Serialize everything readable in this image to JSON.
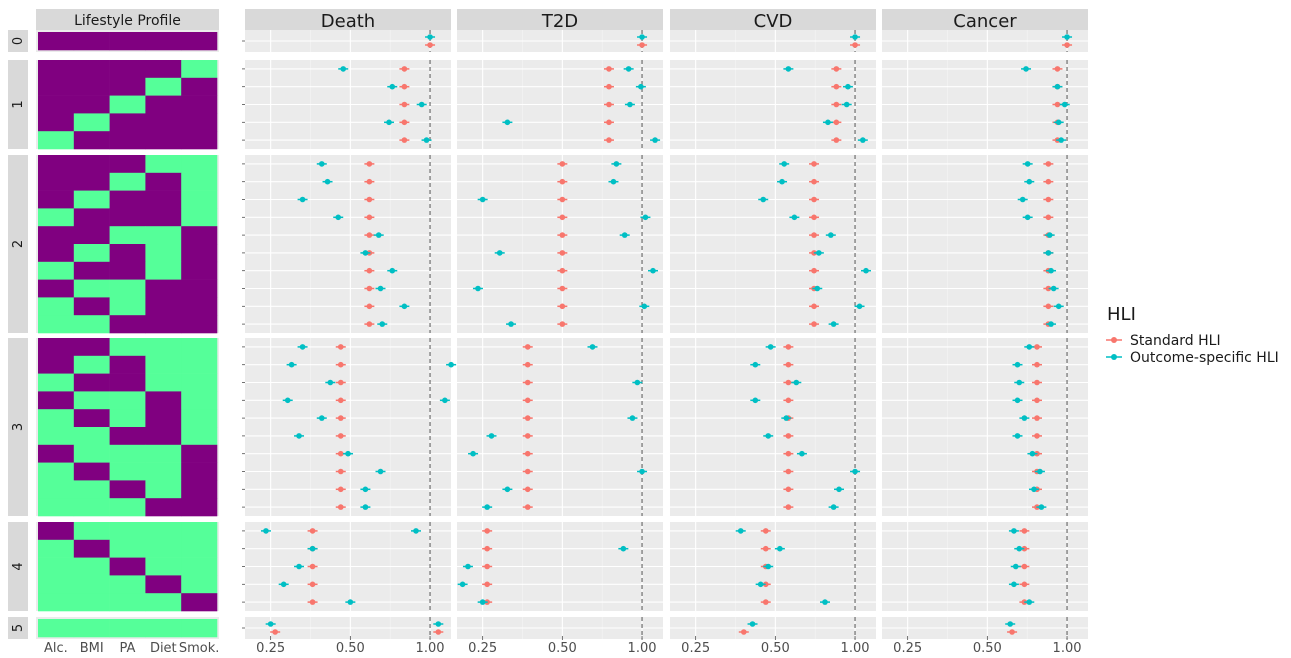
{
  "chart_data": {
    "type": "scatter",
    "left_panel": {
      "title": "Lifestyle Profile",
      "factors": [
        "Alc.",
        "BMI",
        "PA",
        "Diet",
        "Smok."
      ],
      "colors": {
        "unhealthy": "#800080",
        "healthy": "#55ff99"
      },
      "row_groups": [
        {
          "label": "0",
          "rows": [
            [
              0,
              0,
              0,
              0,
              0
            ]
          ]
        },
        {
          "label": "1",
          "rows": [
            [
              0,
              0,
              0,
              0,
              1
            ],
            [
              0,
              0,
              0,
              1,
              0
            ],
            [
              0,
              0,
              1,
              0,
              0
            ],
            [
              0,
              1,
              0,
              0,
              0
            ],
            [
              1,
              0,
              0,
              0,
              0
            ]
          ]
        },
        {
          "label": "2",
          "rows": [
            [
              0,
              0,
              0,
              1,
              1
            ],
            [
              0,
              0,
              1,
              0,
              1
            ],
            [
              0,
              1,
              0,
              0,
              1
            ],
            [
              1,
              0,
              0,
              0,
              1
            ],
            [
              0,
              0,
              1,
              1,
              0
            ],
            [
              0,
              1,
              0,
              1,
              0
            ],
            [
              1,
              0,
              0,
              1,
              0
            ],
            [
              0,
              1,
              1,
              0,
              0
            ],
            [
              1,
              0,
              1,
              0,
              0
            ],
            [
              1,
              1,
              0,
              0,
              0
            ]
          ]
        },
        {
          "label": "3",
          "rows": [
            [
              0,
              0,
              1,
              1,
              1
            ],
            [
              0,
              1,
              0,
              1,
              1
            ],
            [
              1,
              0,
              0,
              1,
              1
            ],
            [
              0,
              1,
              1,
              0,
              1
            ],
            [
              1,
              0,
              1,
              0,
              1
            ],
            [
              1,
              1,
              0,
              0,
              1
            ],
            [
              0,
              1,
              1,
              1,
              0
            ],
            [
              1,
              0,
              1,
              1,
              0
            ],
            [
              1,
              1,
              0,
              1,
              0
            ],
            [
              1,
              1,
              1,
              0,
              0
            ]
          ]
        },
        {
          "label": "4",
          "rows": [
            [
              0,
              1,
              1,
              1,
              1
            ],
            [
              1,
              0,
              1,
              1,
              1
            ],
            [
              1,
              1,
              0,
              1,
              1
            ],
            [
              1,
              1,
              1,
              0,
              1
            ],
            [
              1,
              1,
              1,
              1,
              0
            ]
          ]
        },
        {
          "label": "5",
          "rows": [
            [
              1,
              1,
              1,
              1,
              1
            ]
          ]
        }
      ]
    },
    "panels": [
      "Death",
      "T2D",
      "CVD",
      "Cancer"
    ],
    "x_scale": "log",
    "x_ticks": [
      0.25,
      0.5,
      1.0
    ],
    "x_tick_labels": [
      "0.25",
      "0.50",
      "1.00"
    ],
    "xlim": [
      0.2,
      1.2
    ],
    "reference_line": 1.0,
    "grid": true,
    "legend": {
      "title": "HLI",
      "position": "right"
    },
    "series": [
      {
        "name": "Standard HLI",
        "color": "#f8766d",
        "values": {
          "Death": [
            [
              1.0
            ],
            [
              0.8,
              0.8,
              0.8,
              0.8,
              0.8
            ],
            [
              0.59,
              0.59,
              0.59,
              0.59,
              0.59,
              0.59,
              0.59,
              0.59,
              0.59,
              0.59
            ],
            [
              0.46,
              0.46,
              0.46,
              0.46,
              0.46,
              0.46,
              0.46,
              0.46,
              0.46,
              0.46
            ],
            [
              0.36,
              0.36,
              0.36,
              0.36,
              0.36
            ],
            [
              0.26
            ]
          ],
          "T2D": [
            [
              1.0
            ],
            [
              0.75,
              0.75,
              0.75,
              0.75,
              0.75
            ],
            [
              0.5,
              0.5,
              0.5,
              0.5,
              0.5,
              0.5,
              0.5,
              0.5,
              0.5,
              0.5
            ],
            [
              0.37,
              0.37,
              0.37,
              0.37,
              0.37,
              0.37,
              0.37,
              0.37,
              0.37,
              0.37
            ],
            [
              0.26,
              0.26,
              0.26,
              0.26,
              0.26
            ],
            [
              0.17
            ]
          ],
          "CVD": [
            [
              1.0
            ],
            [
              0.85,
              0.85,
              0.85,
              0.85,
              0.85
            ],
            [
              0.7,
              0.7,
              0.7,
              0.7,
              0.7,
              0.7,
              0.7,
              0.7,
              0.7,
              0.7
            ],
            [
              0.56,
              0.56,
              0.56,
              0.56,
              0.56,
              0.56,
              0.56,
              0.56,
              0.56,
              0.56
            ],
            [
              0.46,
              0.46,
              0.46,
              0.46,
              0.46
            ],
            [
              0.38
            ]
          ],
          "Cancer": [
            [
              1.0
            ],
            [
              0.92,
              0.92,
              0.92,
              0.92,
              0.92
            ],
            [
              0.85,
              0.85,
              0.85,
              0.85,
              0.85,
              0.85,
              0.85,
              0.85,
              0.85,
              0.85
            ],
            [
              0.77,
              0.77,
              0.77,
              0.77,
              0.77,
              0.77,
              0.77,
              0.77,
              0.77,
              0.77
            ],
            [
              0.69,
              0.69,
              0.69,
              0.69,
              0.69
            ],
            [
              0.62
            ]
          ]
        }
      },
      {
        "name": "Outcome-specific HLI",
        "color": "#00bfc4",
        "values": {
          "Death": [
            [
              1.0
            ],
            [
              0.47,
              0.72,
              0.93,
              0.7,
              0.97
            ],
            [
              0.39,
              0.41,
              0.33,
              0.45,
              0.64,
              0.57,
              0.72,
              0.65,
              0.8,
              0.66
            ],
            [
              0.33,
              0.3,
              0.42,
              0.29,
              0.39,
              0.32,
              0.49,
              0.65,
              0.57,
              0.57
            ],
            [
              0.24,
              0.36,
              0.32,
              0.28,
              0.5
            ],
            [
              0.25
            ]
          ],
          "T2D": [
            [
              1.0
            ],
            [
              0.89,
              0.99,
              0.9,
              0.31,
              1.12
            ],
            [
              0.8,
              0.78,
              0.25,
              1.03,
              0.86,
              0.29,
              1.1,
              0.24,
              1.02,
              0.32
            ],
            [
              0.65,
              0.19,
              0.96,
              0.18,
              0.92,
              0.27,
              0.23,
              1.0,
              0.31,
              0.26
            ],
            [
              0.14,
              0.85,
              0.22,
              0.21,
              0.25
            ],
            [
              0.17
            ]
          ],
          "CVD": [
            [
              1.0
            ],
            [
              0.56,
              0.94,
              0.93,
              0.79,
              1.07
            ],
            [
              0.54,
              0.53,
              0.45,
              0.59,
              0.81,
              0.73,
              1.1,
              0.72,
              1.04,
              0.83
            ],
            [
              0.48,
              0.42,
              0.6,
              0.42,
              0.55,
              0.47,
              0.63,
              1.0,
              0.87,
              0.83
            ],
            [
              0.37,
              0.52,
              0.47,
              0.44,
              0.77
            ],
            [
              0.41
            ]
          ],
          "Cancer": [
            [
              1.0
            ],
            [
              0.7,
              0.92,
              0.98,
              0.93,
              0.95
            ],
            [
              0.71,
              0.72,
              0.68,
              0.71,
              0.86,
              0.85,
              0.87,
              0.89,
              0.93,
              0.87
            ],
            [
              0.72,
              0.65,
              0.66,
              0.65,
              0.69,
              0.65,
              0.74,
              0.79,
              0.75,
              0.8
            ],
            [
              0.63,
              0.66,
              0.64,
              0.63,
              0.72
            ],
            [
              0.61
            ]
          ]
        }
      }
    ]
  }
}
